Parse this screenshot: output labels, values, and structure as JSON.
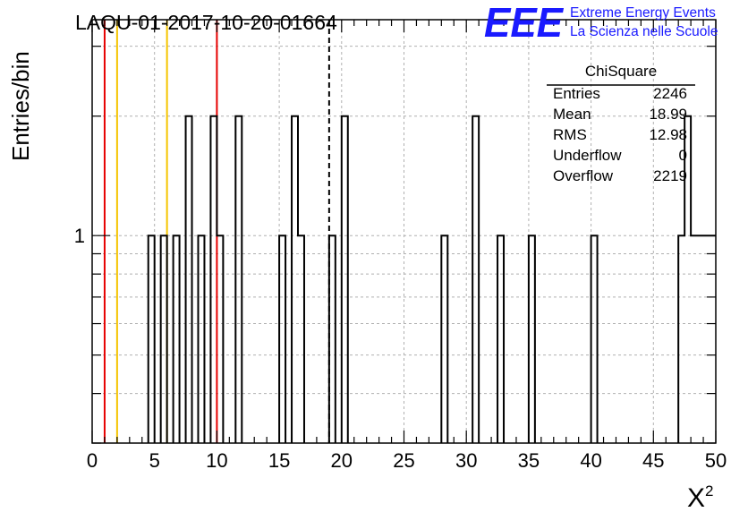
{
  "chart_data": {
    "type": "histogram",
    "title": "LAQU-01-2017-10-20-01664",
    "xlabel": "X",
    "xlabel_superscript": "2",
    "ylabel": "Entries/bin",
    "xlim": [
      0,
      50
    ],
    "ylim": [
      0.3,
      3.5
    ],
    "y_scale": "log",
    "grid": true,
    "x_ticks": [
      0,
      5,
      10,
      15,
      20,
      25,
      30,
      35,
      40,
      45,
      50
    ],
    "y_ticks": [
      1
    ],
    "bin_width": 0.5,
    "bins": [
      {
        "x": 4.5,
        "y": 1
      },
      {
        "x": 5.5,
        "y": 1
      },
      {
        "x": 6.5,
        "y": 1
      },
      {
        "x": 7.5,
        "y": 2
      },
      {
        "x": 8.5,
        "y": 1
      },
      {
        "x": 9.5,
        "y": 2
      },
      {
        "x": 10.0,
        "y": 1
      },
      {
        "x": 11.5,
        "y": 2
      },
      {
        "x": 15.0,
        "y": 1
      },
      {
        "x": 16.0,
        "y": 2
      },
      {
        "x": 16.5,
        "y": 1
      },
      {
        "x": 19.0,
        "y": 1
      },
      {
        "x": 20.0,
        "y": 2
      },
      {
        "x": 28.0,
        "y": 1
      },
      {
        "x": 30.5,
        "y": 2
      },
      {
        "x": 32.5,
        "y": 1
      },
      {
        "x": 35.0,
        "y": 1
      },
      {
        "x": 40.0,
        "y": 1
      },
      {
        "x": 47.0,
        "y": 1
      },
      {
        "x": 47.5,
        "y": 2
      },
      {
        "x": 48.0,
        "y": 1
      },
      {
        "x": 48.5,
        "y": 1
      },
      {
        "x": 49.0,
        "y": 1
      },
      {
        "x": 49.5,
        "y": 1
      }
    ],
    "vertical_lines": [
      {
        "x": 1.0,
        "color": "#e60000",
        "style": "solid"
      },
      {
        "x": 2.0,
        "color": "#f5c400",
        "style": "solid"
      },
      {
        "x": 6.0,
        "color": "#f5c400",
        "style": "solid"
      },
      {
        "x": 10.0,
        "color": "#e60000",
        "style": "solid"
      },
      {
        "x": 19.0,
        "color": "#000000",
        "style": "dashed"
      }
    ],
    "stats_box": {
      "title": "ChiSquare",
      "rows": [
        {
          "label": "Entries",
          "value": "2246"
        },
        {
          "label": "Mean",
          "value": "18.99"
        },
        {
          "label": "RMS",
          "value": "12.98"
        },
        {
          "label": "Underflow",
          "value": "0"
        },
        {
          "label": "Overflow",
          "value": "2219"
        }
      ]
    }
  },
  "logo": {
    "letters": "EEE",
    "line1": "Extreme Energy Events",
    "line2": "La Scienza nelle Scuole",
    "color": "#1a1aff"
  }
}
